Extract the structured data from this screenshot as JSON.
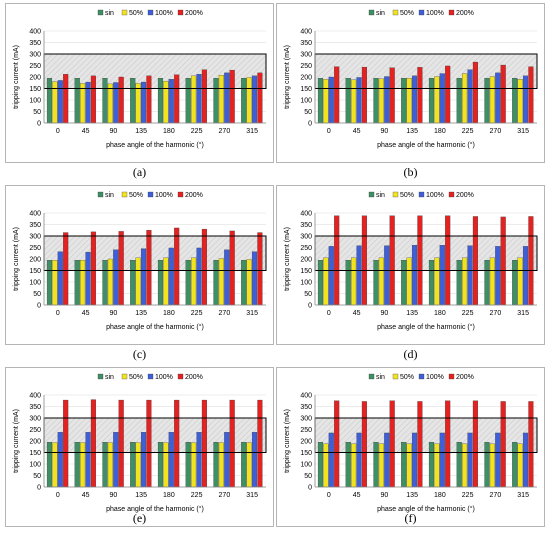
{
  "legend": {
    "series_names": [
      "sin",
      "50%",
      "100%",
      "200%"
    ],
    "series_colors": [
      "#3f8f64",
      "#f2e321",
      "#3f5fd9",
      "#e32222"
    ]
  },
  "band": {
    "fill": "#e5e5e5"
  },
  "chart_data": [
    {
      "caption": "(a)",
      "type": "bar",
      "xlabel": "phase angle of the harmonic (°)",
      "ylabel": "tripping current (mA)",
      "ylim": [
        0,
        400
      ],
      "yticks": [
        0,
        50,
        100,
        150,
        200,
        250,
        300,
        350,
        400
      ],
      "categories": [
        "0",
        "45",
        "90",
        "135",
        "180",
        "225",
        "270",
        "315"
      ],
      "band": [
        150,
        300
      ],
      "series": [
        {
          "name": "sin",
          "values": [
            195,
            195,
            195,
            195,
            195,
            195,
            195,
            195
          ]
        },
        {
          "name": "50%",
          "values": [
            180,
            172,
            170,
            172,
            182,
            205,
            208,
            198
          ]
        },
        {
          "name": "100%",
          "values": [
            185,
            178,
            176,
            178,
            190,
            212,
            218,
            205
          ]
        },
        {
          "name": "200%",
          "values": [
            212,
            205,
            200,
            205,
            210,
            232,
            230,
            218
          ]
        }
      ]
    },
    {
      "caption": "(b)",
      "type": "bar",
      "xlabel": "phase angle of the harmonic (°)",
      "ylabel": "tripping current (mA)",
      "ylim": [
        0,
        400
      ],
      "yticks": [
        0,
        50,
        100,
        150,
        200,
        250,
        300,
        350,
        400
      ],
      "categories": [
        "0",
        "45",
        "90",
        "135",
        "180",
        "225",
        "270",
        "315"
      ],
      "band": [
        150,
        300
      ],
      "series": [
        {
          "name": "sin",
          "values": [
            195,
            195,
            195,
            195,
            195,
            195,
            195,
            195
          ]
        },
        {
          "name": "50%",
          "values": [
            190,
            188,
            192,
            195,
            202,
            215,
            202,
            190
          ]
        },
        {
          "name": "100%",
          "values": [
            200,
            198,
            202,
            205,
            215,
            232,
            218,
            205
          ]
        },
        {
          "name": "200%",
          "values": [
            245,
            243,
            240,
            242,
            248,
            265,
            252,
            245
          ]
        }
      ]
    },
    {
      "caption": "(c)",
      "type": "bar",
      "xlabel": "phase angle of the harmonic (°)",
      "ylabel": "tripping current (mA)",
      "ylim": [
        0,
        400
      ],
      "yticks": [
        0,
        50,
        100,
        150,
        200,
        250,
        300,
        350,
        400
      ],
      "categories": [
        "0",
        "45",
        "90",
        "135",
        "180",
        "225",
        "270",
        "315"
      ],
      "band": [
        150,
        300
      ],
      "series": [
        {
          "name": "sin",
          "values": [
            195,
            195,
            195,
            195,
            195,
            195,
            195,
            195
          ]
        },
        {
          "name": "50%",
          "values": [
            195,
            195,
            200,
            205,
            205,
            205,
            202,
            198
          ]
        },
        {
          "name": "100%",
          "values": [
            232,
            230,
            240,
            245,
            248,
            248,
            240,
            232
          ]
        },
        {
          "name": "200%",
          "values": [
            315,
            318,
            320,
            325,
            335,
            330,
            322,
            315
          ]
        }
      ]
    },
    {
      "caption": "(d)",
      "type": "bar",
      "xlabel": "phase angle of the harmonic (°)",
      "ylabel": "tripping current (mA)",
      "ylim": [
        0,
        400
      ],
      "yticks": [
        0,
        50,
        100,
        150,
        200,
        250,
        300,
        350,
        400
      ],
      "categories": [
        "0",
        "45",
        "90",
        "135",
        "180",
        "225",
        "270",
        "315"
      ],
      "band": [
        150,
        300
      ],
      "series": [
        {
          "name": "sin",
          "values": [
            195,
            195,
            195,
            195,
            195,
            195,
            195,
            195
          ]
        },
        {
          "name": "50%",
          "values": [
            205,
            205,
            205,
            205,
            205,
            205,
            205,
            205
          ]
        },
        {
          "name": "100%",
          "values": [
            255,
            258,
            258,
            260,
            260,
            258,
            255,
            255
          ]
        },
        {
          "name": "200%",
          "values": [
            388,
            388,
            388,
            388,
            388,
            385,
            383,
            385
          ]
        }
      ]
    },
    {
      "caption": "(e)",
      "type": "bar",
      "xlabel": "phase angle of the harmonic (°)",
      "ylabel": "tripping current (mA)",
      "ylim": [
        0,
        400
      ],
      "yticks": [
        0,
        50,
        100,
        150,
        200,
        250,
        300,
        350,
        400
      ],
      "categories": [
        "0",
        "45",
        "90",
        "135",
        "180",
        "225",
        "270",
        "315"
      ],
      "band": [
        150,
        300
      ],
      "series": [
        {
          "name": "sin",
          "values": [
            195,
            195,
            195,
            195,
            195,
            195,
            195,
            195
          ]
        },
        {
          "name": "50%",
          "values": [
            193,
            193,
            193,
            193,
            193,
            193,
            193,
            193
          ]
        },
        {
          "name": "100%",
          "values": [
            238,
            238,
            238,
            238,
            238,
            238,
            238,
            238
          ]
        },
        {
          "name": "200%",
          "values": [
            378,
            380,
            378,
            378,
            378,
            378,
            378,
            378
          ]
        }
      ]
    },
    {
      "caption": "(f)",
      "type": "bar",
      "xlabel": "phase angle of the harmonic (°)",
      "ylabel": "tripping current (mA)",
      "ylim": [
        0,
        400
      ],
      "yticks": [
        0,
        50,
        100,
        150,
        200,
        250,
        300,
        350,
        400
      ],
      "categories": [
        "0",
        "45",
        "90",
        "135",
        "180",
        "225",
        "270",
        "315"
      ],
      "band": [
        150,
        300
      ],
      "series": [
        {
          "name": "sin",
          "values": [
            195,
            195,
            195,
            195,
            195,
            195,
            195,
            195
          ]
        },
        {
          "name": "50%",
          "values": [
            188,
            188,
            188,
            188,
            188,
            188,
            188,
            188
          ]
        },
        {
          "name": "100%",
          "values": [
            235,
            235,
            235,
            235,
            235,
            235,
            235,
            235
          ]
        },
        {
          "name": "200%",
          "values": [
            375,
            372,
            375,
            372,
            375,
            375,
            372,
            372
          ]
        }
      ]
    }
  ]
}
